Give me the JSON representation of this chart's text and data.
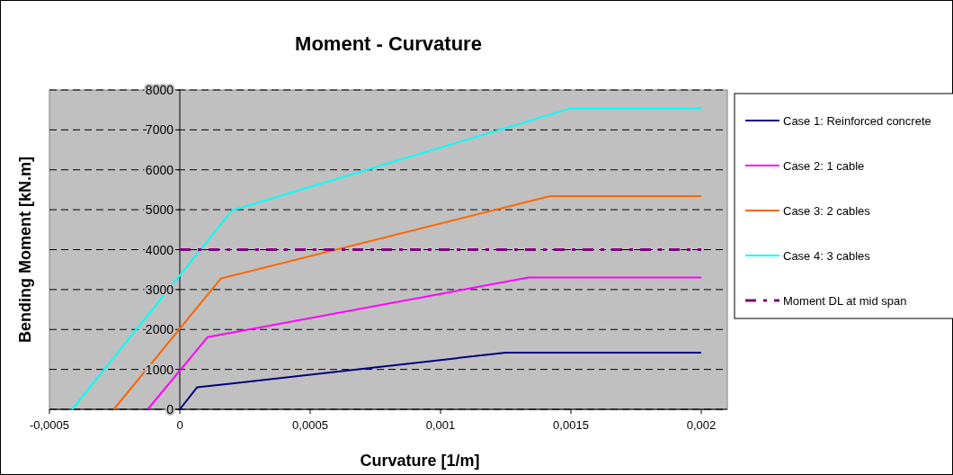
{
  "chart_data": {
    "type": "line",
    "title": "Moment - Curvature",
    "xlabel": "Curvature   [1/m]",
    "ylabel": "Bending Moment   [kN.m]",
    "xlim": [
      -0.0005,
      0.0021
    ],
    "xticks": [
      {
        "value": -0.0005,
        "label": "-0,0005"
      },
      {
        "value": 0,
        "label": "0"
      },
      {
        "value": 0.0005,
        "label": "0,0005"
      },
      {
        "value": 0.001,
        "label": "0,001"
      },
      {
        "value": 0.0015,
        "label": "0,0015"
      },
      {
        "value": 0.002,
        "label": "0,002"
      }
    ],
    "ylim": [
      0,
      8000
    ],
    "yticks": [
      0,
      1000,
      2000,
      3000,
      4000,
      5000,
      6000,
      7000,
      8000
    ],
    "grid": "y",
    "legend": "right",
    "marker": "none",
    "series": [
      {
        "name": "Case 1: Reinforced concrete",
        "color": "#000080",
        "x": [
          0,
          6.6e-05,
          0.00125,
          0.002
        ],
        "values": [
          0,
          550,
          1420,
          1420
        ]
      },
      {
        "name": "Case 2: 1 cable",
        "color": "#ff00ff",
        "x": [
          -0.000123,
          0.000107,
          0.001337,
          0.002
        ],
        "values": [
          0,
          1810,
          3300,
          3300
        ]
      },
      {
        "name": "Case 3: 2 cables",
        "color": "#ff6600",
        "x": [
          -0.000253,
          0.000158,
          0.00142,
          0.002
        ],
        "values": [
          0,
          3280,
          5340,
          5340
        ]
      },
      {
        "name": "Case 4: 3 cables",
        "color": "#00ffff",
        "x": [
          -0.000413,
          0.0002,
          0.0015,
          0.002
        ],
        "values": [
          0,
          4980,
          7540,
          7540
        ]
      },
      {
        "name": "Moment DL at mid span",
        "color": "#800080",
        "x": [
          0,
          0.002
        ],
        "values": [
          4000,
          4000
        ],
        "line_style": "dashed"
      }
    ]
  }
}
